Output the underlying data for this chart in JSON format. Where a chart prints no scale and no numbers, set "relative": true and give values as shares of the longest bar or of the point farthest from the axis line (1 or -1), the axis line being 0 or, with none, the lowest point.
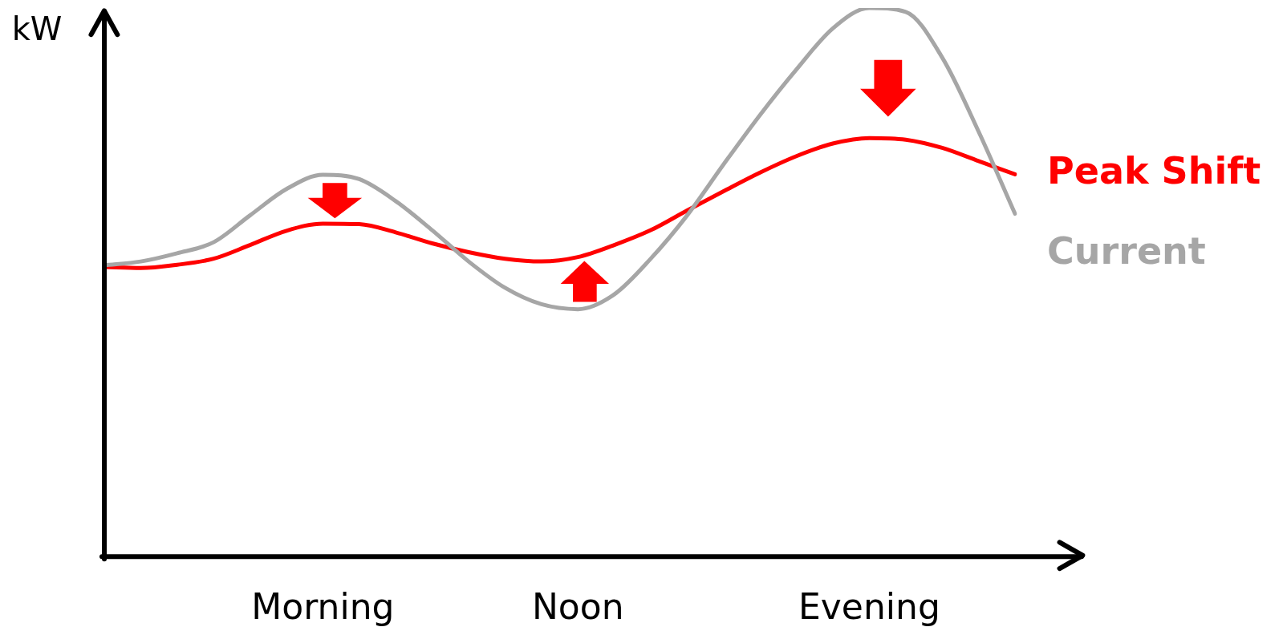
{
  "chart_data": {
    "type": "line",
    "relative": true,
    "ylabel": "kW",
    "legend": false,
    "marker": "none",
    "categories": [
      null,
      null,
      null,
      null,
      null,
      null,
      "Morning",
      null,
      null,
      null,
      null,
      null,
      null,
      "Noon",
      null,
      null,
      null,
      null,
      null,
      null,
      null,
      "Evening",
      null,
      null,
      null,
      null
    ],
    "series": [
      {
        "name": "Current",
        "color": "#a6a6a6",
        "values": [
          0.531,
          0.538,
          0.553,
          0.573,
          0.622,
          0.67,
          0.696,
          0.688,
          0.648,
          0.595,
          0.538,
          0.49,
          0.46,
          0.451,
          0.478,
          0.543,
          0.622,
          0.715,
          0.805,
          0.888,
          0.963,
          1.0,
          0.993,
          0.91,
          0.775,
          0.625
        ]
      },
      {
        "name": "Peak Shift",
        "color": "#ff0000",
        "values": [
          0.528,
          0.526,
          0.532,
          0.543,
          0.568,
          0.594,
          0.607,
          0.606,
          0.591,
          0.571,
          0.555,
          0.543,
          0.538,
          0.546,
          0.568,
          0.595,
          0.631,
          0.666,
          0.7,
          0.73,
          0.753,
          0.763,
          0.76,
          0.745,
          0.721,
          0.697
        ]
      }
    ]
  }
}
